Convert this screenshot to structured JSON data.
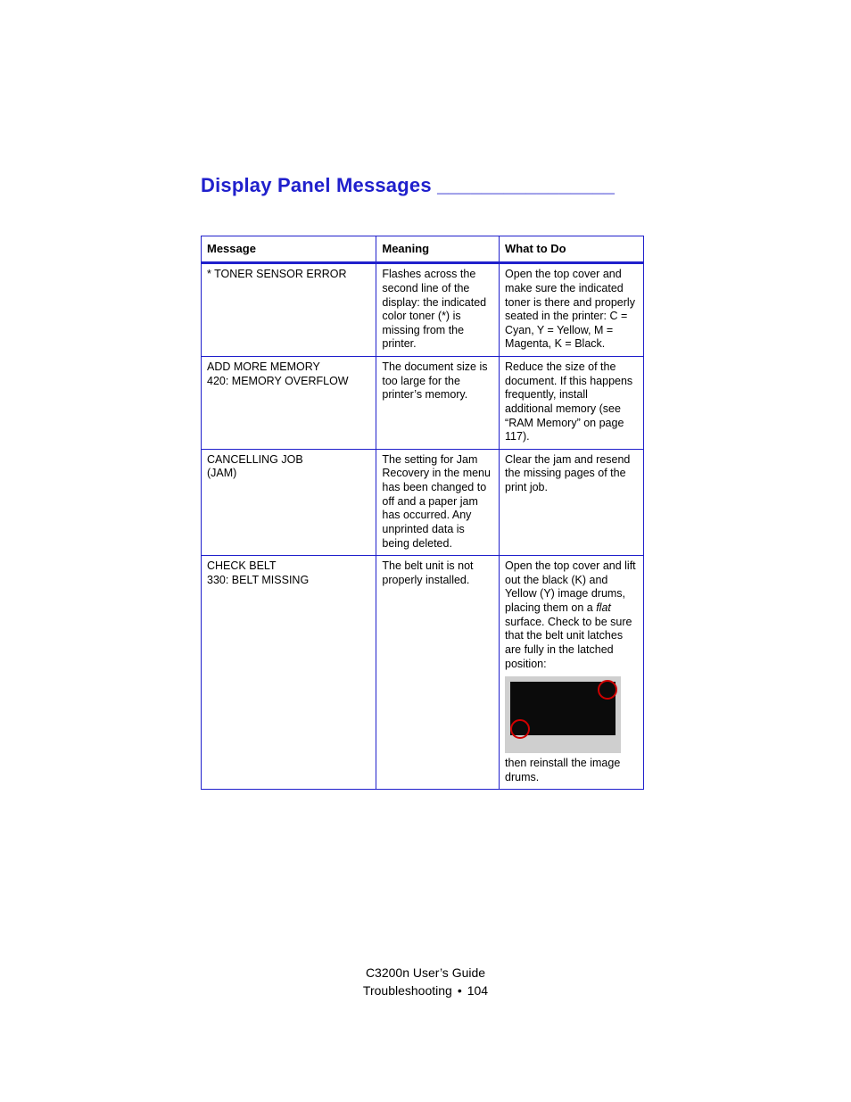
{
  "colors": {
    "accent": "#2020cc",
    "text": "#000000",
    "ring": "#d00000",
    "thumb_bg": "#cfcfcf",
    "thumb_dark": "#0b0b0b"
  },
  "title": "Display Panel Messages ________________",
  "table": {
    "headers": [
      "Message",
      "Meaning",
      "What to Do"
    ],
    "rows": [
      {
        "message": "* TONER SENSOR ERROR",
        "meaning": "Flashes across the second line of the display: the indicated color toner (*) is missing from the printer.",
        "what": "Open the top cover and make sure the indicated toner is there and properly seated in the printer: C = Cyan, Y = Yellow, M = Magenta, K = Black."
      },
      {
        "message": "ADD MORE MEMORY\n420: MEMORY OVERFLOW",
        "meaning": "The document size is too large for the printer’s memory.",
        "what": "Reduce the size of the document. If this happens frequently, install additional memory (see “RAM Memory” on page 117)."
      },
      {
        "message": "CANCELLING JOB\n(JAM)",
        "meaning": "The setting for Jam Recovery in the menu has been changed to off and a paper jam has occurred. Any unprinted data is being deleted.",
        "what": "Clear the jam and resend the missing pages of the print job."
      },
      {
        "message": "CHECK BELT\n330: BELT MISSING",
        "meaning": "The belt unit is not properly installed.",
        "what_pre": "Open the top cover and lift out the black (K) and Yellow (Y) image drums, placing them on a ",
        "what_em": "flat",
        "what_mid": " surface. Check to be sure that the belt unit latches are fully in the latched position:",
        "what_post": "then reinstall the image drums.",
        "has_image": true
      }
    ]
  },
  "footer": {
    "line1": "C3200n User’s Guide",
    "line2_a": "Troubleshooting",
    "line2_b": "104"
  }
}
